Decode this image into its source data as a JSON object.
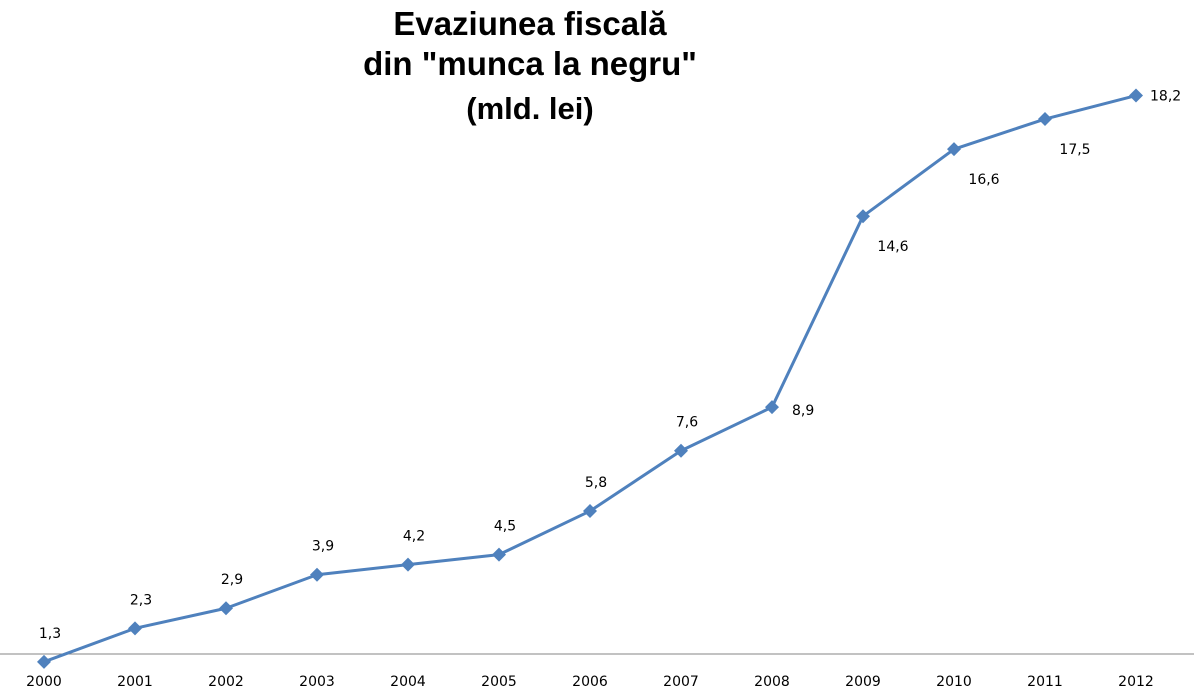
{
  "chart_data": {
    "type": "line",
    "title": "Evaziunea fiscală",
    "title_line2": "din \"munca la negru\"",
    "subtitle": "(mld. lei)",
    "xlabel": "",
    "ylabel": "",
    "categories": [
      "2000",
      "2001",
      "2002",
      "2003",
      "2004",
      "2005",
      "2006",
      "2007",
      "2008",
      "2009",
      "2010",
      "2011",
      "2012"
    ],
    "series": [
      {
        "values": [
          1.3,
          2.3,
          2.9,
          3.9,
          4.2,
          4.5,
          5.8,
          7.6,
          8.9,
          14.6,
          16.6,
          17.5,
          18.2
        ],
        "labels": [
          "1,3",
          "2,3",
          "2,9",
          "3,9",
          "4,2",
          "4,5",
          "5,8",
          "7,6",
          "8,9",
          "14,6",
          "16,6",
          "17,5",
          "18,2"
        ],
        "color": "#4F81BD",
        "marker": "diamond"
      }
    ],
    "ylim": [
      0.4,
      19.5
    ],
    "grid": false,
    "legend": "none",
    "axis_color": "#868686"
  }
}
